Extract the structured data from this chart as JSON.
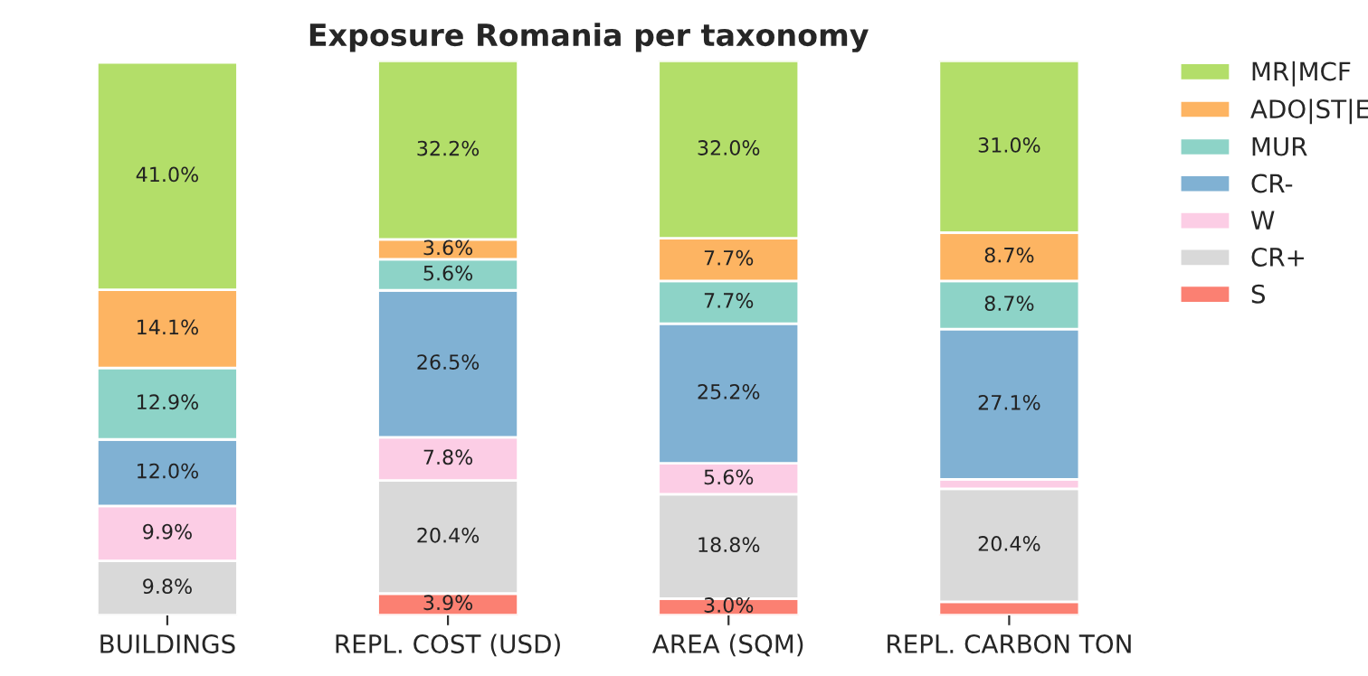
{
  "chart_data": {
    "type": "bar",
    "title": "Exposure Romania per taxonomy",
    "stacked": true,
    "legend": "top right",
    "categories": [
      "BUILDINGS",
      "REPL. COST (USD)",
      "AREA (SQM)",
      "REPL. CARBON TON"
    ],
    "series": [
      {
        "name": "S",
        "color": "#fb8072",
        "values": [
          0,
          3.9,
          3.0,
          2.4
        ],
        "value_labels": [
          null,
          "3.9%",
          "3.0%",
          null
        ]
      },
      {
        "name": "CR+",
        "color": "#d9d9d9",
        "values": [
          9.8,
          20.4,
          18.8,
          20.4
        ],
        "value_labels": [
          "9.8%",
          "20.4%",
          "18.8%",
          "20.4%"
        ]
      },
      {
        "name": "W",
        "color": "#fccde5",
        "values": [
          9.9,
          7.8,
          5.6,
          1.7
        ],
        "value_labels": [
          "9.9%",
          "7.8%",
          "5.6%",
          null
        ]
      },
      {
        "name": "CR-",
        "color": "#80b1d3",
        "values": [
          12.0,
          26.5,
          25.2,
          27.1
        ],
        "value_labels": [
          "12.0%",
          "26.5%",
          "25.2%",
          "27.1%"
        ]
      },
      {
        "name": "MUR",
        "color": "#8dd3c7",
        "values": [
          12.9,
          5.6,
          7.7,
          8.7
        ],
        "value_labels": [
          "12.9%",
          "5.6%",
          "7.7%",
          "8.7%"
        ]
      },
      {
        "name": "ADO|ST|E",
        "color": "#fdb462",
        "values": [
          14.1,
          3.6,
          7.7,
          8.7
        ],
        "value_labels": [
          "14.1%",
          "3.6%",
          "7.7%",
          "8.7%"
        ]
      },
      {
        "name": "MR|MCF",
        "color": "#b3de69",
        "values": [
          41.0,
          32.2,
          32.0,
          31.0
        ],
        "value_labels": [
          "41.0%",
          "32.2%",
          "32.0%",
          "31.0%"
        ]
      }
    ]
  }
}
